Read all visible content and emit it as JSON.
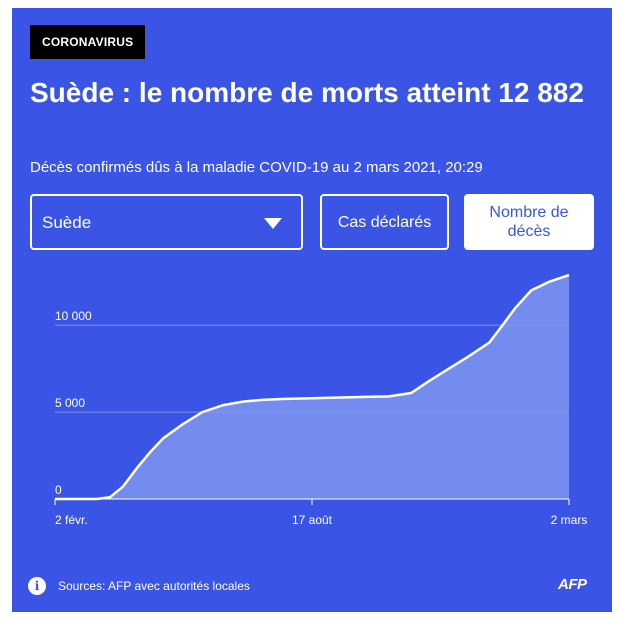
{
  "badge": "CORONAVIRUS",
  "title": "Suède : le nombre de morts atteint 12 882",
  "subtitle": "Décès confirmés dûs à la maladie COVID-19 au 2 mars 2021, 20:29",
  "controls": {
    "country_select": "Suède",
    "cases_button": "Cas déclarés",
    "deaths_button": "Nombre de décès"
  },
  "footer": {
    "source": "Sources: AFP avec autorités locales",
    "logo": "AFP",
    "info_icon": "info-icon"
  },
  "colors": {
    "background": "#3a55e6",
    "area_fill": "#7f96f0",
    "line": "#ffffff"
  },
  "chart_data": {
    "type": "area",
    "title": "",
    "xlabel": "",
    "ylabel": "",
    "ylim": [
      0,
      13000
    ],
    "yticks": [
      0,
      5000,
      10000
    ],
    "ytick_labels": [
      "0",
      "5 000",
      "10 000"
    ],
    "xticks": [
      "2 févr.",
      "17 août",
      "2 mars"
    ],
    "grid": true,
    "series": [
      {
        "x": [
          "2020-02-02",
          "2020-03-05",
          "2020-03-15",
          "2020-03-25",
          "2020-04-05",
          "2020-04-15",
          "2020-04-25",
          "2020-05-10",
          "2020-05-25",
          "2020-06-10",
          "2020-06-25",
          "2020-07-10",
          "2020-07-25",
          "2020-08-17",
          "2020-09-15",
          "2020-10-15",
          "2020-11-01",
          "2020-11-15",
          "2020-11-30",
          "2020-12-15",
          "2020-12-31",
          "2021-01-10",
          "2021-01-20",
          "2021-02-01",
          "2021-02-15",
          "2021-03-02"
        ],
        "values": [
          0,
          0,
          100,
          700,
          1800,
          2700,
          3500,
          4300,
          5000,
          5400,
          5600,
          5700,
          5750,
          5800,
          5850,
          5900,
          6100,
          6800,
          7500,
          8200,
          9000,
          10000,
          11000,
          12000,
          12500,
          12882
        ]
      }
    ]
  }
}
